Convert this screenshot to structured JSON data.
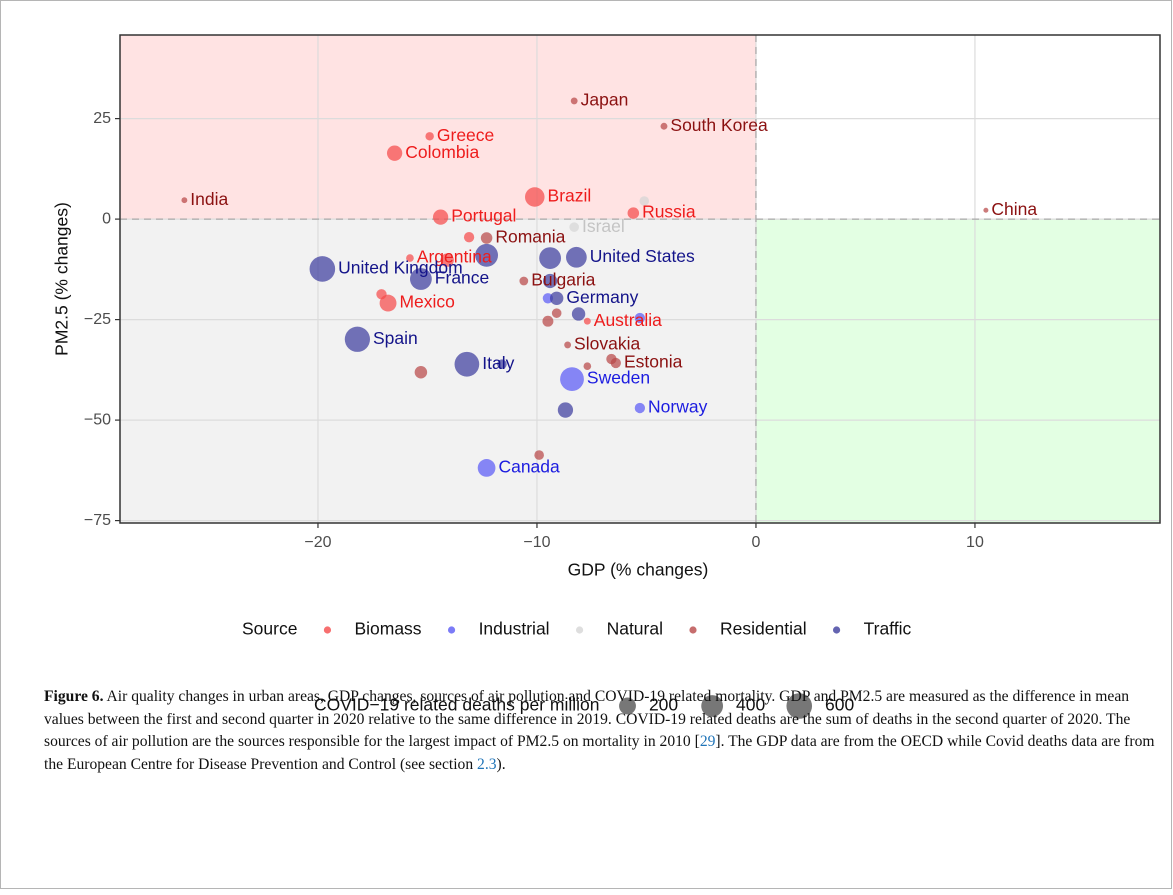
{
  "chart_data": {
    "type": "scatter",
    "xlabel": "GDP (% changes)",
    "ylabel": "PM2.5 (% changes)",
    "xlim": [
      -29.04,
      18.45
    ],
    "ylim": [
      -75.6,
      45.8
    ],
    "xticks": [
      {
        "value": -20,
        "label": "−20"
      },
      {
        "value": -10,
        "label": "−10"
      },
      0,
      10
    ],
    "yticks": [
      {
        "value": -75,
        "label": "−75"
      },
      {
        "value": -50,
        "label": "−50"
      },
      {
        "value": -25,
        "label": "−25"
      },
      0,
      25
    ],
    "grid": true,
    "quadrant_colors": {
      "top_left": "#ffe3e3",
      "bottom_left": "#f2f2f2",
      "bottom_right": "#e3ffe3"
    },
    "legend_title": "Source",
    "series": [
      {
        "name": "Biomass",
        "color": "#f54b4b",
        "label_color": "#ee1c1c",
        "x": [
          -14.9,
          -16.5,
          -10.1,
          -5.6,
          -14.4,
          -15.8,
          -16.8,
          -7.7,
          -13.1,
          -14.1,
          -17.1
        ],
        "values": [
          20.6,
          16.4,
          5.5,
          1.5,
          0.5,
          -9.7,
          -20.9,
          -25.4,
          -4.5,
          -10.2,
          -18.7
        ],
        "sizes": [
          17,
          150,
          300,
          60,
          150,
          10,
          200,
          5,
          40,
          100,
          40
        ],
        "labels": [
          "Greece",
          "Colombia",
          "Brazil",
          "Russia",
          "Portugal",
          "Argentina",
          "Mexico",
          "Australia",
          null,
          null,
          null
        ]
      },
      {
        "name": "Industrial",
        "color": "#5a5af5",
        "label_color": "#1c1ce0",
        "x": [
          -8.4,
          -5.3,
          -12.3,
          -9.5,
          -5.3
        ],
        "values": [
          -39.8,
          -47,
          -61.9,
          -19.7,
          -24.6
        ],
        "sizes": [
          500,
          40,
          230,
          40,
          40
        ],
        "labels": [
          "Sweden",
          "Norway",
          "Canada",
          null,
          null
        ]
      },
      {
        "name": "Natural",
        "color": "#d6d6d6",
        "label_color": "#c4c4c4",
        "x": [
          -8.3,
          -5.1
        ],
        "values": [
          -2.0,
          4.5
        ],
        "sizes": [
          30,
          30
        ],
        "labels": [
          "Israel",
          null
        ]
      },
      {
        "name": "Residential",
        "color": "#b84848",
        "label_color": "#8b1111",
        "x": [
          -8.3,
          -4.2,
          -26.1,
          10.5,
          -12.3,
          -10.6,
          -8.6,
          -6.4,
          -9.1,
          -9.5,
          -6.6,
          -7.7,
          -15.3,
          -9.9
        ],
        "values": [
          29.4,
          23.1,
          4.7,
          2.2,
          -4.7,
          -15.4,
          -31.3,
          -35.8,
          -23.4,
          -25.4,
          -34.8,
          -36.6,
          -38.1,
          -58.7
        ],
        "sizes": [
          5,
          5,
          1,
          0,
          60,
          20,
          5,
          40,
          30,
          50,
          40,
          10,
          80,
          30
        ],
        "labels": [
          "Japan",
          "South Korea",
          "India",
          "China",
          "Romania",
          "Bulgaria",
          "Slovakia",
          "Estonia",
          null,
          null,
          null,
          null,
          null,
          null
        ]
      },
      {
        "name": "Traffic",
        "color": "#3d3d9e",
        "label_color": "#14148a",
        "x": [
          -8.2,
          -19.8,
          -15.3,
          -9.1,
          -18.2,
          -13.2,
          -12.3,
          -9.4,
          -9.4,
          -8.1,
          -11.6,
          -8.7
        ],
        "values": [
          -9.5,
          -12.4,
          -14.9,
          -19.7,
          -29.9,
          -36.1,
          -9,
          -9.7,
          -15.4,
          -23.6,
          -36.1,
          -47.5
        ],
        "sizes": [
          350,
          600,
          400,
          100,
          580,
          550,
          450,
          400,
          120,
          100,
          30,
          150
        ],
        "labels": [
          "United States",
          "United Kingdom",
          "France",
          "Germany",
          "Spain",
          "Italy",
          null,
          null,
          null,
          null,
          null,
          null
        ]
      }
    ],
    "size_legend": {
      "title": "COVID−19 related deaths per million",
      "values": [
        200,
        400,
        600
      ]
    }
  },
  "caption": {
    "label": "Figure 6.",
    "parts": [
      " Air quality changes in urban areas, GDP changes, sources of air pollution and COVID-19 related mortality. GDP and PM2.5 are measured as the difference in mean values between the first and second quarter in 2020 relative to the same difference in 2019. COVID-19 related deaths are the sum of deaths in the second quarter of 2020. The sources of air pollution are the sources responsible for the largest impact of PM2.5 on mortality in 2010 [",
      "29",
      "]. The GDP data are from the OECD while Covid deaths data are from the European Centre for Disease Prevention and Control (see section ",
      "2.3",
      ")."
    ]
  }
}
